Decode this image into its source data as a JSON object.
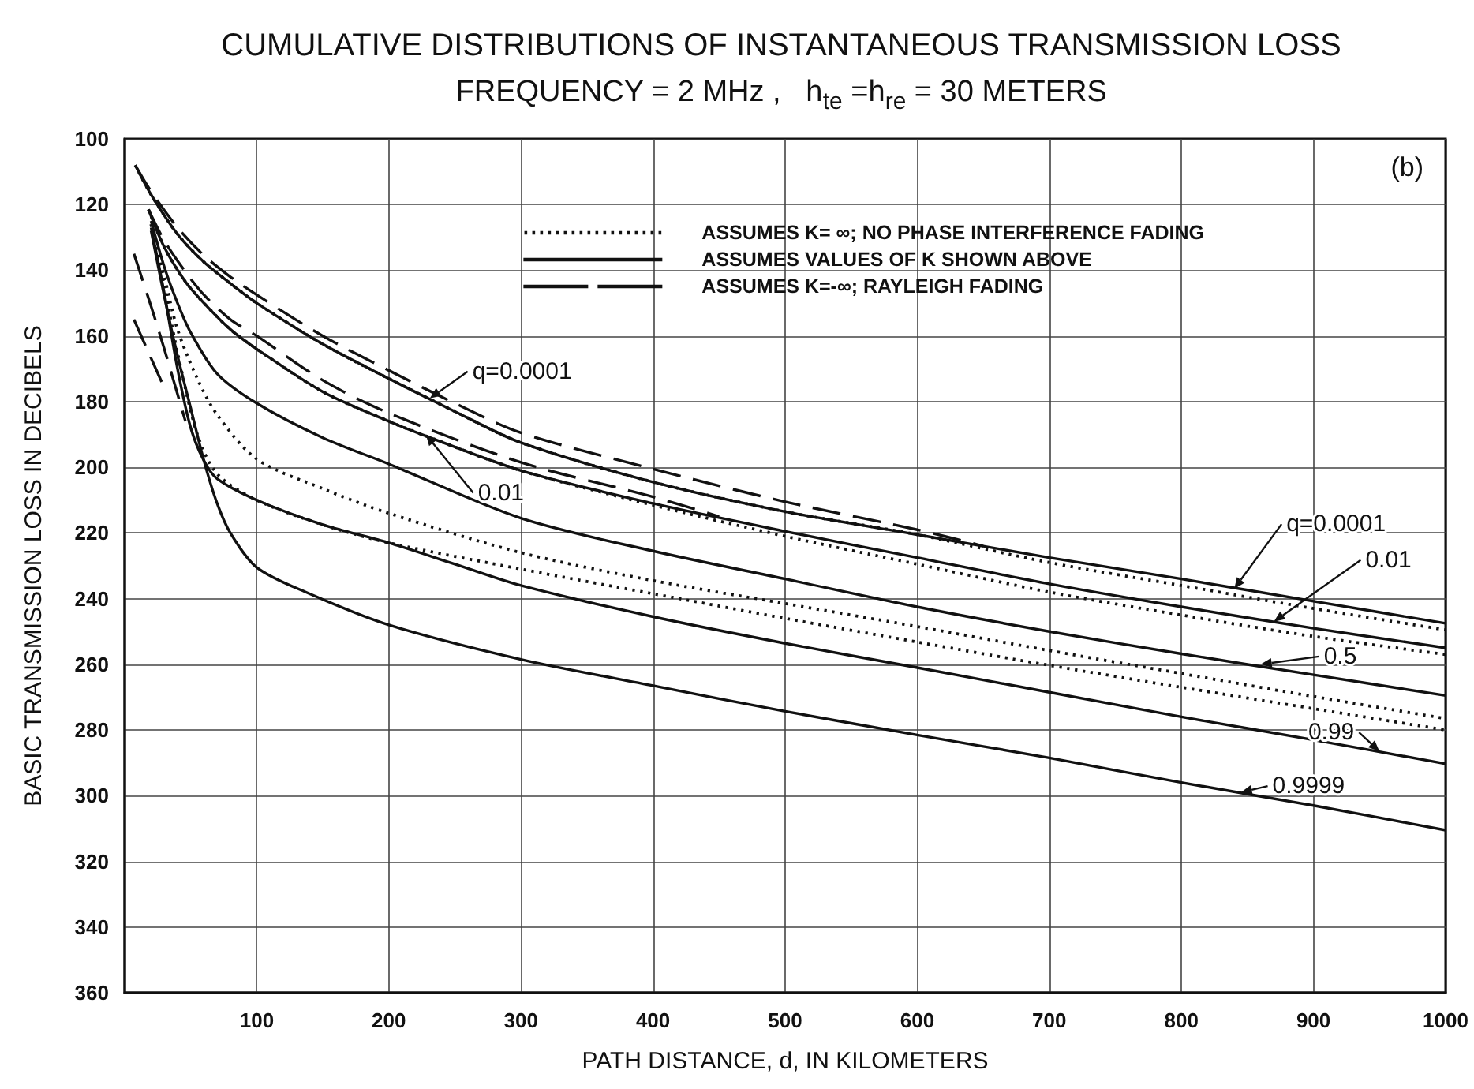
{
  "chart_data": {
    "type": "line",
    "title": "CUMULATIVE DISTRIBUTIONS OF INSTANTANEOUS TRANSMISSION LOSS",
    "subtitle": "FREQUENCY = 2 MHz ,   h$_{te}$ =h$_{re}$ = 30 METERS",
    "xlabel": "PATH DISTANCE, d, IN KILOMETERS",
    "ylabel": "BASIC TRANSMISSION LOSS IN DECIBELS",
    "xlim": [
      0,
      1000
    ],
    "xticks": [
      100,
      200,
      300,
      400,
      500,
      600,
      700,
      800,
      900,
      1000
    ],
    "ylim": [
      360,
      100
    ],
    "yticks": [
      100,
      120,
      140,
      160,
      180,
      200,
      220,
      240,
      260,
      280,
      300,
      320,
      340,
      360
    ],
    "grid": true,
    "legend": "top right",
    "series": [
      {
        "name": "ASSUMES K= ∞; NO PHASE INTERFERENCE FADING",
        "color": "#111111",
        "line_style": "dotted",
        "x": [
          8,
          20,
          40,
          60,
          80,
          100,
          150,
          200,
          250,
          300,
          400,
          500,
          600,
          700,
          800,
          900,
          1000
        ],
        "values": [
          108,
          117,
          129,
          137.5,
          144,
          150,
          162.5,
          173,
          183,
          192.5,
          204.5,
          213.5,
          220.5,
          229,
          236,
          243,
          249.5
        ]
      },
      {
        "color": "#111111",
        "line_style": "dotted",
        "x": [
          18,
          30,
          46,
          60,
          80,
          100,
          150,
          200,
          225,
          300,
          400,
          500,
          600,
          700,
          800,
          900,
          1000
        ],
        "values": [
          121.5,
          133,
          143.5,
          150,
          158,
          164,
          177,
          186,
          190,
          201,
          211.5,
          221,
          229.5,
          238,
          245,
          251.5,
          257
        ]
      },
      {
        "color": "#111111",
        "line_style": "dotted",
        "x": [
          20,
          30,
          40,
          55,
          70,
          100,
          150,
          200,
          300,
          400,
          500,
          600,
          700,
          800,
          900,
          1000
        ],
        "values": [
          126,
          142,
          158,
          173,
          184,
          197.5,
          206.5,
          214,
          226,
          234.5,
          241.5,
          248.5,
          255.8,
          262.8,
          269.8,
          276.5
        ]
      },
      {
        "color": "#111111",
        "line_style": "dotted",
        "x": [
          20,
          30,
          40,
          55,
          70,
          100,
          150,
          200,
          300,
          400,
          500,
          600,
          700,
          800,
          900,
          1000
        ],
        "values": [
          126,
          145,
          165,
          190,
          202,
          210,
          217.5,
          223,
          231,
          238.5,
          246,
          253.2,
          260.3,
          267,
          273.5,
          280
        ]
      },
      {
        "name": "ASSUMES VALUES OF K SHOWN ABOVE",
        "color": "#111111",
        "line_style": "solid",
        "x": [
          8,
          20,
          40,
          60,
          80,
          100,
          150,
          200,
          250,
          300,
          400,
          500,
          600,
          700,
          800,
          900,
          1000
        ],
        "values": [
          108,
          117,
          129,
          137.5,
          144,
          150,
          162.5,
          173,
          183,
          192.5,
          204.5,
          213.5,
          220.5,
          227.5,
          234,
          240.8,
          247.5
        ]
      },
      {
        "color": "#111111",
        "line_style": "solid",
        "x": [
          18,
          30,
          46,
          60,
          80,
          100,
          150,
          200,
          225,
          300,
          400,
          500,
          600,
          700,
          800,
          900,
          1000
        ],
        "values": [
          121.5,
          133,
          143.5,
          150,
          158,
          164,
          177,
          186,
          190,
          201,
          211,
          219.5,
          227.5,
          235.5,
          242.5,
          249,
          255
        ]
      },
      {
        "color": "#111111",
        "line_style": "solid",
        "x": [
          20,
          30,
          40,
          50,
          70,
          100,
          150,
          200,
          300,
          400,
          500,
          600,
          700,
          800,
          900,
          1000
        ],
        "values": [
          125,
          139,
          150,
          159,
          171.5,
          180.5,
          191,
          199,
          215.5,
          225.5,
          234,
          242.5,
          250,
          256.8,
          263.2,
          269.5
        ]
      },
      {
        "color": "#111111",
        "line_style": "solid",
        "x": [
          20,
          30,
          40,
          50,
          60,
          70,
          100,
          150,
          200,
          250,
          300,
          400,
          500,
          600,
          700,
          800,
          900,
          1000
        ],
        "values": [
          127,
          147,
          170,
          188,
          198,
          203.5,
          210,
          217.5,
          223,
          229.5,
          236,
          245.5,
          253.6,
          261,
          268.5,
          276,
          283,
          290.3
        ]
      },
      {
        "color": "#111111",
        "line_style": "solid",
        "x": [
          20,
          30,
          40,
          50,
          60,
          70,
          80,
          100,
          137,
          200,
          300,
          400,
          500,
          600,
          700,
          800,
          900,
          1000
        ],
        "values": [
          128,
          148,
          166,
          182,
          198,
          211,
          220,
          230.5,
          238,
          248,
          258.5,
          266.5,
          274.3,
          281.5,
          288.5,
          296,
          303,
          310.5
        ]
      },
      {
        "name": "ASSUMES K=-∞; RAYLEIGH FADING",
        "color": "#111111",
        "line_style": "dashed",
        "x": [
          8,
          20,
          40,
          60,
          80,
          100,
          150,
          200,
          250,
          300,
          400,
          500,
          600,
          650
        ],
        "values": [
          108,
          116,
          127,
          135.5,
          142,
          147.5,
          160,
          170.5,
          180.5,
          189.5,
          200.5,
          210.5,
          219,
          224
        ]
      },
      {
        "color": "#111111",
        "line_style": "dashed",
        "x": [
          18,
          30,
          46,
          60,
          80,
          100,
          150,
          200,
          300,
          400,
          450
        ],
        "values": [
          121.5,
          131,
          140.5,
          147.5,
          155,
          160,
          173.5,
          183.5,
          198.5,
          209,
          215
        ]
      },
      {
        "color": "#111111",
        "line_style": "dashed",
        "x": [
          7,
          20,
          30,
          46
        ],
        "values": [
          135,
          151,
          164,
          186
        ]
      },
      {
        "color": "#111111",
        "line_style": "dashed",
        "x": [
          7,
          18,
          28
        ],
        "values": [
          155,
          165,
          174
        ]
      }
    ],
    "annotations": [
      "(b)",
      {
        "text": "q=0.0001",
        "x": 231,
        "y": 179
      },
      {
        "text": "0.01",
        "x": 228,
        "y": 190
      },
      {
        "text": "q=0.0001",
        "x": 840,
        "y": 237
      },
      {
        "text": "0.01",
        "x": 870,
        "y": 247
      },
      {
        "text": "0.5",
        "x": 860,
        "y": 260
      },
      {
        "text": "0.99",
        "x": 950,
        "y": 286.5
      },
      {
        "text": "0.9999",
        "x": 845,
        "y": 299
      }
    ]
  }
}
